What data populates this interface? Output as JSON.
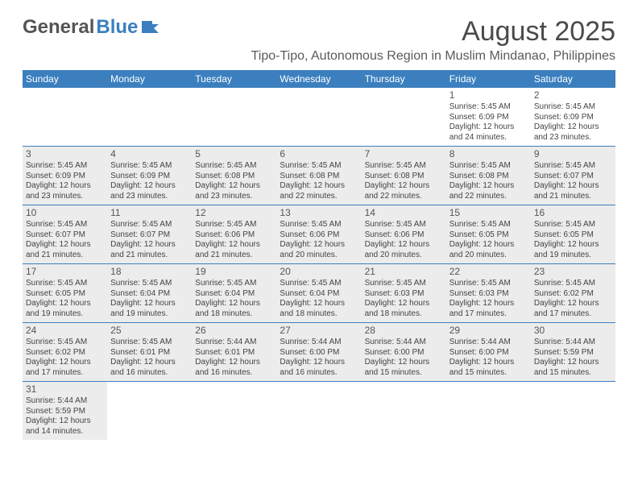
{
  "logo": {
    "part1": "General",
    "part2": "Blue"
  },
  "title": "August 2025",
  "location": "Tipo-Tipo, Autonomous Region in Muslim Mindanao, Philippines",
  "header_bg": "#3b7fbf",
  "shaded_bg": "#ececec",
  "dayNames": [
    "Sunday",
    "Monday",
    "Tuesday",
    "Wednesday",
    "Thursday",
    "Friday",
    "Saturday"
  ],
  "weeks": [
    [
      {
        "d": "",
        "l": []
      },
      {
        "d": "",
        "l": []
      },
      {
        "d": "",
        "l": []
      },
      {
        "d": "",
        "l": []
      },
      {
        "d": "",
        "l": []
      },
      {
        "d": "1",
        "l": [
          "Sunrise: 5:45 AM",
          "Sunset: 6:09 PM",
          "Daylight: 12 hours",
          "and 24 minutes."
        ]
      },
      {
        "d": "2",
        "l": [
          "Sunrise: 5:45 AM",
          "Sunset: 6:09 PM",
          "Daylight: 12 hours",
          "and 23 minutes."
        ]
      }
    ],
    [
      {
        "d": "3",
        "l": [
          "Sunrise: 5:45 AM",
          "Sunset: 6:09 PM",
          "Daylight: 12 hours",
          "and 23 minutes."
        ],
        "s": 1
      },
      {
        "d": "4",
        "l": [
          "Sunrise: 5:45 AM",
          "Sunset: 6:09 PM",
          "Daylight: 12 hours",
          "and 23 minutes."
        ],
        "s": 1
      },
      {
        "d": "5",
        "l": [
          "Sunrise: 5:45 AM",
          "Sunset: 6:08 PM",
          "Daylight: 12 hours",
          "and 23 minutes."
        ],
        "s": 1
      },
      {
        "d": "6",
        "l": [
          "Sunrise: 5:45 AM",
          "Sunset: 6:08 PM",
          "Daylight: 12 hours",
          "and 22 minutes."
        ],
        "s": 1
      },
      {
        "d": "7",
        "l": [
          "Sunrise: 5:45 AM",
          "Sunset: 6:08 PM",
          "Daylight: 12 hours",
          "and 22 minutes."
        ],
        "s": 1
      },
      {
        "d": "8",
        "l": [
          "Sunrise: 5:45 AM",
          "Sunset: 6:08 PM",
          "Daylight: 12 hours",
          "and 22 minutes."
        ],
        "s": 1
      },
      {
        "d": "9",
        "l": [
          "Sunrise: 5:45 AM",
          "Sunset: 6:07 PM",
          "Daylight: 12 hours",
          "and 21 minutes."
        ],
        "s": 1
      }
    ],
    [
      {
        "d": "10",
        "l": [
          "Sunrise: 5:45 AM",
          "Sunset: 6:07 PM",
          "Daylight: 12 hours",
          "and 21 minutes."
        ],
        "s": 1
      },
      {
        "d": "11",
        "l": [
          "Sunrise: 5:45 AM",
          "Sunset: 6:07 PM",
          "Daylight: 12 hours",
          "and 21 minutes."
        ],
        "s": 1
      },
      {
        "d": "12",
        "l": [
          "Sunrise: 5:45 AM",
          "Sunset: 6:06 PM",
          "Daylight: 12 hours",
          "and 21 minutes."
        ],
        "s": 1
      },
      {
        "d": "13",
        "l": [
          "Sunrise: 5:45 AM",
          "Sunset: 6:06 PM",
          "Daylight: 12 hours",
          "and 20 minutes."
        ],
        "s": 1
      },
      {
        "d": "14",
        "l": [
          "Sunrise: 5:45 AM",
          "Sunset: 6:06 PM",
          "Daylight: 12 hours",
          "and 20 minutes."
        ],
        "s": 1
      },
      {
        "d": "15",
        "l": [
          "Sunrise: 5:45 AM",
          "Sunset: 6:05 PM",
          "Daylight: 12 hours",
          "and 20 minutes."
        ],
        "s": 1
      },
      {
        "d": "16",
        "l": [
          "Sunrise: 5:45 AM",
          "Sunset: 6:05 PM",
          "Daylight: 12 hours",
          "and 19 minutes."
        ],
        "s": 1
      }
    ],
    [
      {
        "d": "17",
        "l": [
          "Sunrise: 5:45 AM",
          "Sunset: 6:05 PM",
          "Daylight: 12 hours",
          "and 19 minutes."
        ],
        "s": 1
      },
      {
        "d": "18",
        "l": [
          "Sunrise: 5:45 AM",
          "Sunset: 6:04 PM",
          "Daylight: 12 hours",
          "and 19 minutes."
        ],
        "s": 1
      },
      {
        "d": "19",
        "l": [
          "Sunrise: 5:45 AM",
          "Sunset: 6:04 PM",
          "Daylight: 12 hours",
          "and 18 minutes."
        ],
        "s": 1
      },
      {
        "d": "20",
        "l": [
          "Sunrise: 5:45 AM",
          "Sunset: 6:04 PM",
          "Daylight: 12 hours",
          "and 18 minutes."
        ],
        "s": 1
      },
      {
        "d": "21",
        "l": [
          "Sunrise: 5:45 AM",
          "Sunset: 6:03 PM",
          "Daylight: 12 hours",
          "and 18 minutes."
        ],
        "s": 1
      },
      {
        "d": "22",
        "l": [
          "Sunrise: 5:45 AM",
          "Sunset: 6:03 PM",
          "Daylight: 12 hours",
          "and 17 minutes."
        ],
        "s": 1
      },
      {
        "d": "23",
        "l": [
          "Sunrise: 5:45 AM",
          "Sunset: 6:02 PM",
          "Daylight: 12 hours",
          "and 17 minutes."
        ],
        "s": 1
      }
    ],
    [
      {
        "d": "24",
        "l": [
          "Sunrise: 5:45 AM",
          "Sunset: 6:02 PM",
          "Daylight: 12 hours",
          "and 17 minutes."
        ],
        "s": 1
      },
      {
        "d": "25",
        "l": [
          "Sunrise: 5:45 AM",
          "Sunset: 6:01 PM",
          "Daylight: 12 hours",
          "and 16 minutes."
        ],
        "s": 1
      },
      {
        "d": "26",
        "l": [
          "Sunrise: 5:44 AM",
          "Sunset: 6:01 PM",
          "Daylight: 12 hours",
          "and 16 minutes."
        ],
        "s": 1
      },
      {
        "d": "27",
        "l": [
          "Sunrise: 5:44 AM",
          "Sunset: 6:00 PM",
          "Daylight: 12 hours",
          "and 16 minutes."
        ],
        "s": 1
      },
      {
        "d": "28",
        "l": [
          "Sunrise: 5:44 AM",
          "Sunset: 6:00 PM",
          "Daylight: 12 hours",
          "and 15 minutes."
        ],
        "s": 1
      },
      {
        "d": "29",
        "l": [
          "Sunrise: 5:44 AM",
          "Sunset: 6:00 PM",
          "Daylight: 12 hours",
          "and 15 minutes."
        ],
        "s": 1
      },
      {
        "d": "30",
        "l": [
          "Sunrise: 5:44 AM",
          "Sunset: 5:59 PM",
          "Daylight: 12 hours",
          "and 15 minutes."
        ],
        "s": 1
      }
    ],
    [
      {
        "d": "31",
        "l": [
          "Sunrise: 5:44 AM",
          "Sunset: 5:59 PM",
          "Daylight: 12 hours",
          "and 14 minutes."
        ],
        "s": 1
      },
      {
        "d": "",
        "l": []
      },
      {
        "d": "",
        "l": []
      },
      {
        "d": "",
        "l": []
      },
      {
        "d": "",
        "l": []
      },
      {
        "d": "",
        "l": []
      },
      {
        "d": "",
        "l": []
      }
    ]
  ]
}
